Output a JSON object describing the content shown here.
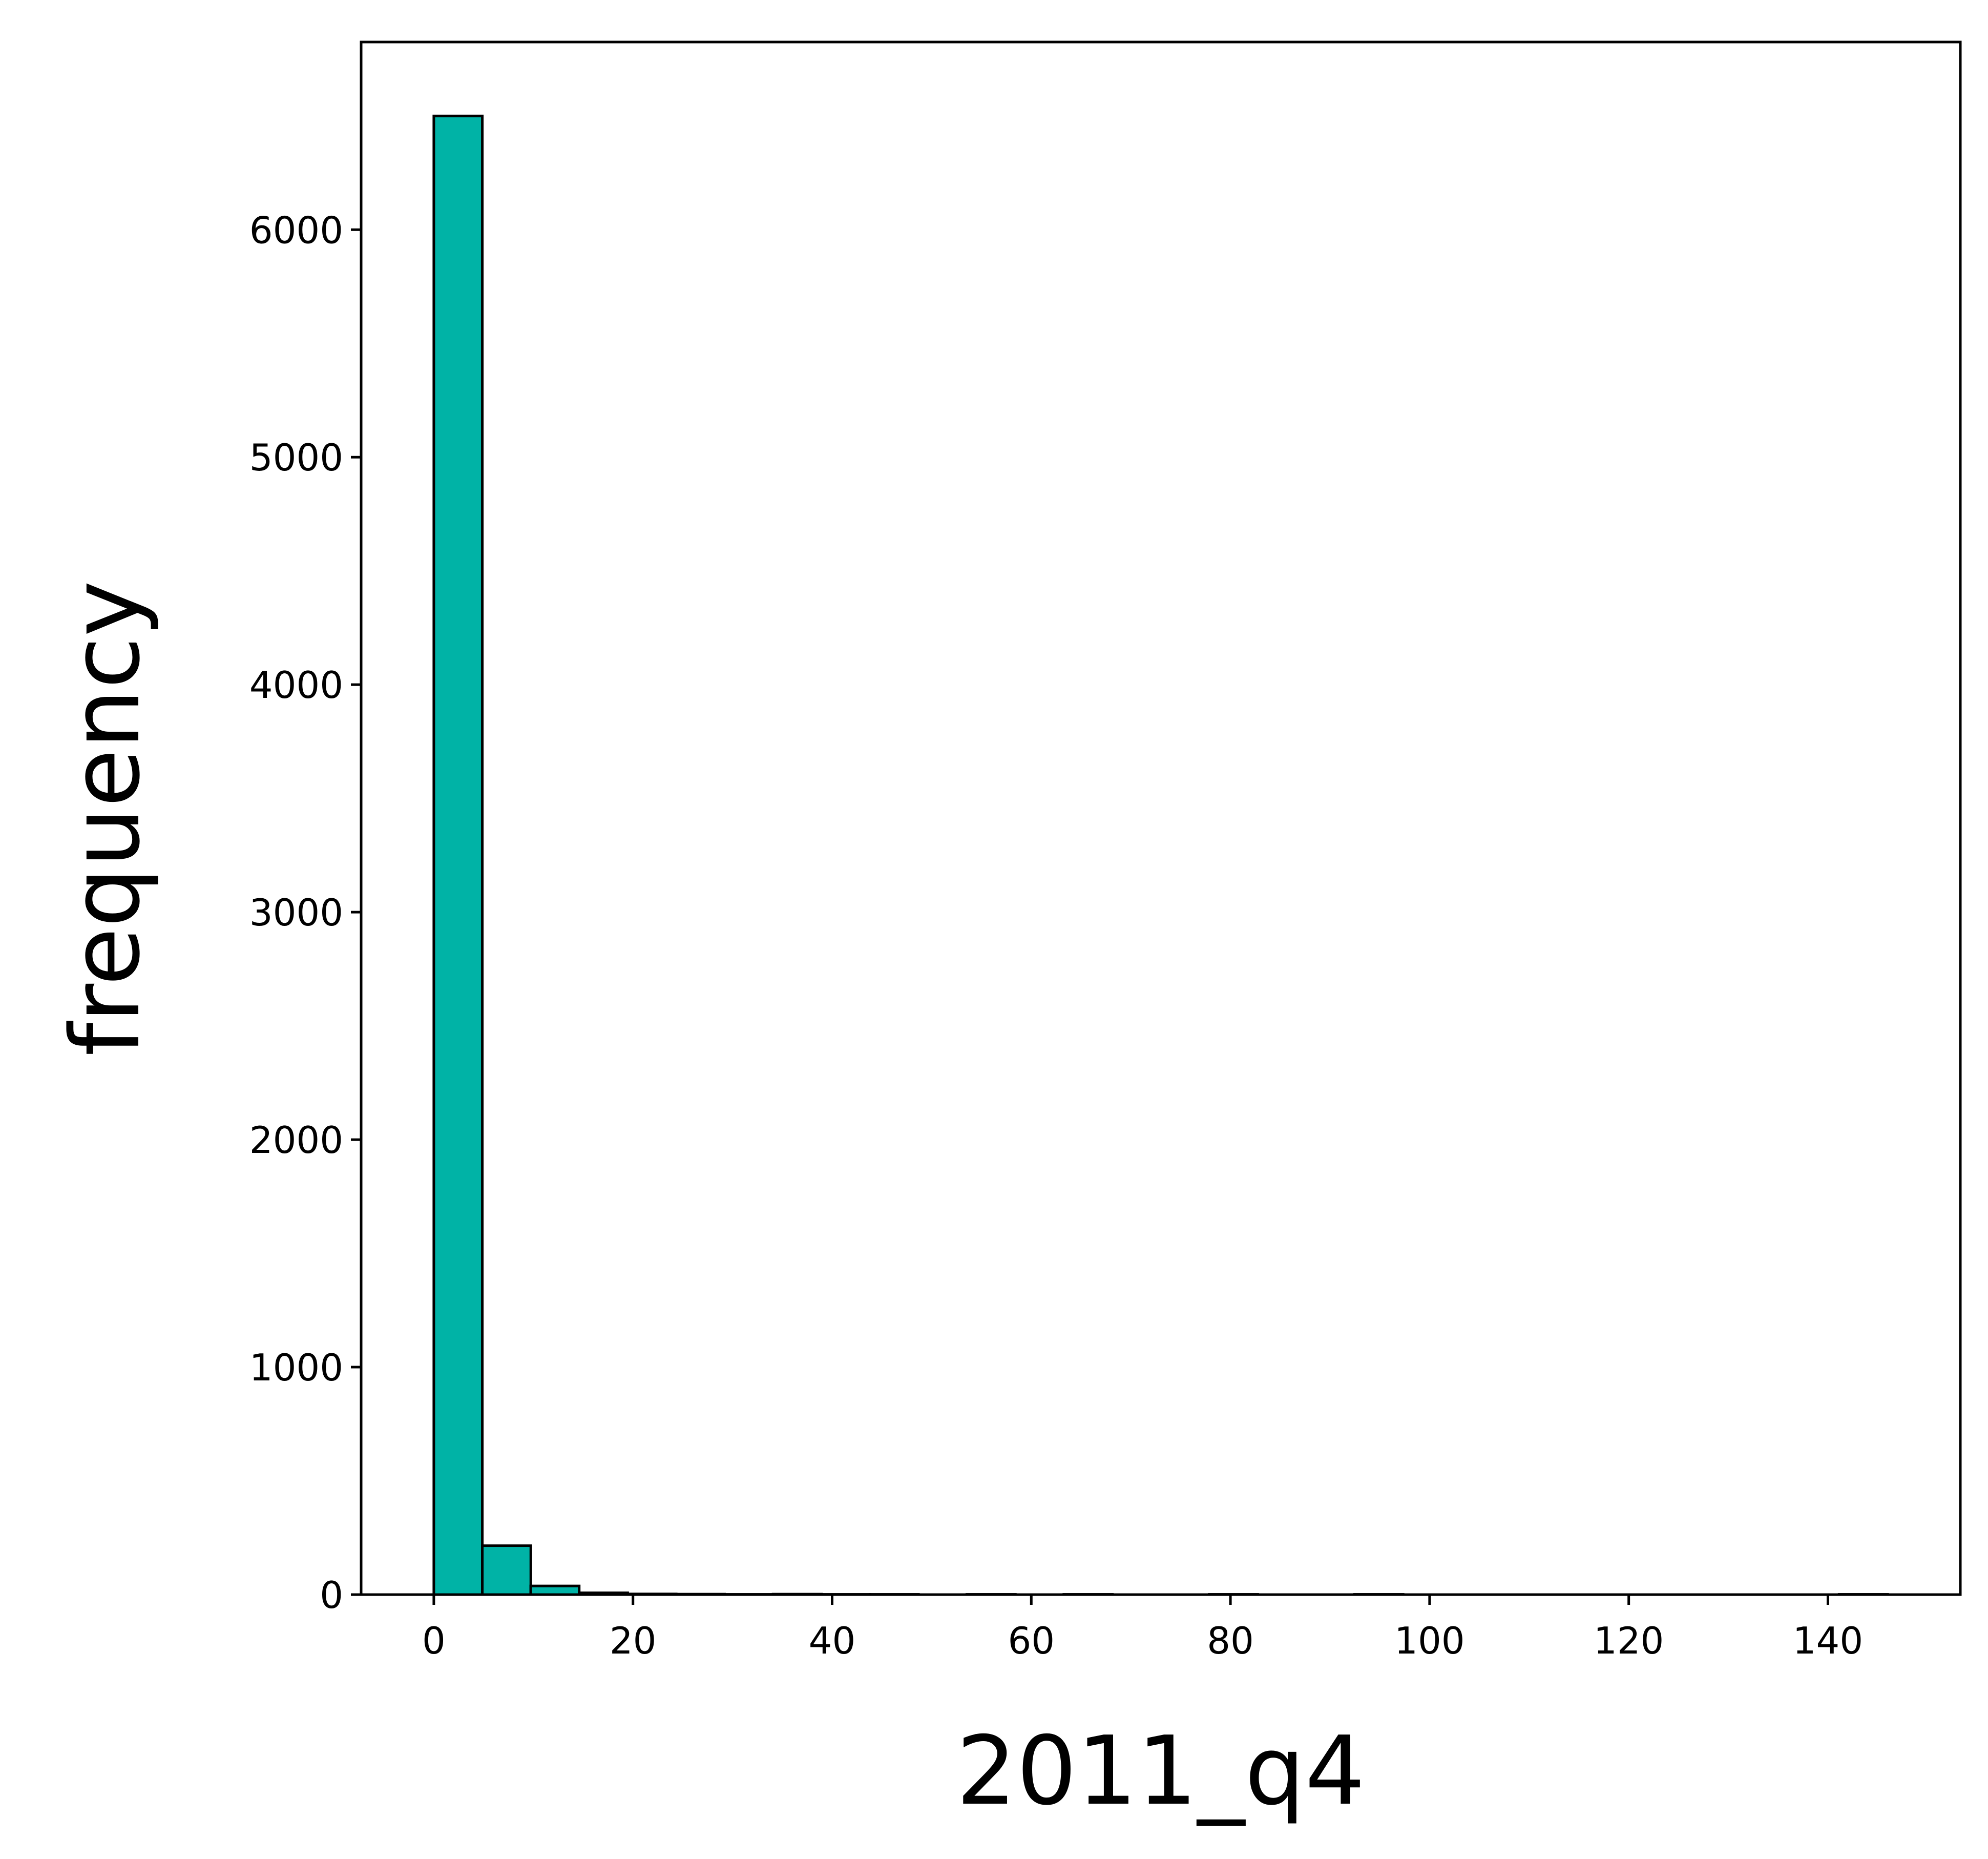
{
  "chart_data": {
    "type": "bar",
    "title": "",
    "xlabel": "2011_q4",
    "ylabel": "frequency",
    "xlim": [
      -7.3,
      153.3
    ],
    "ylim": [
      0,
      6825
    ],
    "xticks": [
      0,
      20,
      40,
      60,
      80,
      100,
      120,
      140
    ],
    "yticks": [
      0,
      1000,
      2000,
      3000,
      4000,
      5000,
      6000
    ],
    "bin_width": 4.87,
    "bins": [
      {
        "x0": 0.0,
        "count": 6500
      },
      {
        "x0": 4.87,
        "count": 215
      },
      {
        "x0": 9.73,
        "count": 38
      },
      {
        "x0": 14.6,
        "count": 8
      },
      {
        "x0": 19.47,
        "count": 3
      },
      {
        "x0": 24.33,
        "count": 2
      },
      {
        "x0": 29.2,
        "count": 1
      },
      {
        "x0": 34.07,
        "count": 2
      },
      {
        "x0": 38.93,
        "count": 1
      },
      {
        "x0": 43.8,
        "count": 1
      },
      {
        "x0": 48.67,
        "count": 0
      },
      {
        "x0": 53.53,
        "count": 1
      },
      {
        "x0": 58.4,
        "count": 0
      },
      {
        "x0": 63.27,
        "count": 1
      },
      {
        "x0": 68.13,
        "count": 0
      },
      {
        "x0": 73.0,
        "count": 0
      },
      {
        "x0": 77.87,
        "count": 1
      },
      {
        "x0": 82.73,
        "count": 0
      },
      {
        "x0": 87.6,
        "count": 0
      },
      {
        "x0": 92.47,
        "count": 1
      },
      {
        "x0": 97.33,
        "count": 0
      },
      {
        "x0": 102.2,
        "count": 0
      },
      {
        "x0": 107.07,
        "count": 0
      },
      {
        "x0": 111.93,
        "count": 0
      },
      {
        "x0": 116.8,
        "count": 0
      },
      {
        "x0": 121.67,
        "count": 0
      },
      {
        "x0": 126.53,
        "count": 0
      },
      {
        "x0": 131.4,
        "count": 0
      },
      {
        "x0": 136.27,
        "count": 0
      },
      {
        "x0": 141.13,
        "count": 1
      }
    ],
    "bar_color": "#00b3a6",
    "edge_color": "#000000",
    "grid": false,
    "legend": "none"
  }
}
